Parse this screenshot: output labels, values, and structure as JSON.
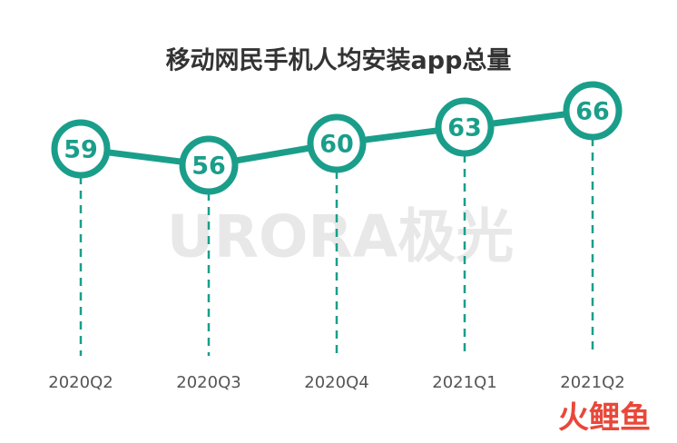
{
  "chart_data": {
    "type": "line",
    "title": "移动网民手机人均安装app总量",
    "categories": [
      "2020Q2",
      "2020Q3",
      "2020Q4",
      "2021Q1",
      "2021Q2"
    ],
    "values": [
      59,
      56,
      60,
      63,
      66
    ],
    "color": "#1a9e8a",
    "watermark": "URORA极光",
    "logo": "火鲤鱼"
  }
}
